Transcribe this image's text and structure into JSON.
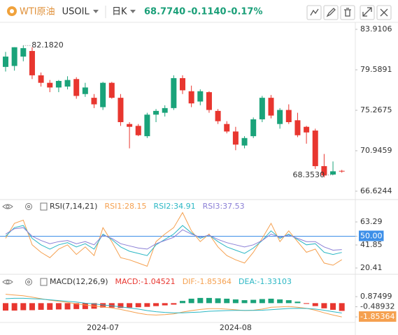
{
  "chart_data": [
    {
      "type": "candlestick",
      "title": "WTI原油",
      "symbol": "USOIL",
      "period": "日K",
      "quote": [
        "68.7740",
        "-0.1140",
        "-0.17%"
      ],
      "up_color": "#1aa37a",
      "down_color": "#e8362f",
      "categories": [
        null,
        null,
        null,
        null,
        null,
        null,
        null,
        null,
        null,
        null,
        null,
        "2024-07",
        null,
        null,
        null,
        null,
        null,
        null,
        null,
        null,
        null,
        null,
        null,
        null,
        null,
        null,
        "2024-08",
        null,
        null,
        null,
        null,
        null,
        null,
        null,
        null,
        null,
        null,
        null,
        null
      ],
      "open": [
        79.9,
        80.0,
        81.0,
        81.6,
        79.0,
        78.2,
        77.7,
        77.8,
        78.6,
        77.0,
        76.6,
        75.6,
        78.2,
        76.6,
        73.8,
        73.6,
        72.5,
        74.8,
        75.0,
        75.5,
        78.7,
        77.3,
        76.2,
        77.2,
        75.2,
        73.8,
        73.0,
        71.5,
        72.5,
        74.3,
        76.6,
        73.8,
        75.3,
        74.2,
        73.5,
        73.1,
        69.3,
        68.4,
        68.8
      ],
      "high": [
        81.5,
        82.0,
        82.182,
        82.0,
        79.3,
        78.5,
        78.5,
        78.9,
        78.8,
        78.2,
        77.0,
        78.3,
        78.3,
        77.0,
        74.0,
        73.8,
        75.0,
        75.4,
        75.8,
        79.0,
        79.0,
        77.9,
        77.5,
        77.3,
        75.4,
        74.1,
        73.5,
        72.5,
        74.5,
        76.8,
        76.9,
        75.5,
        75.9,
        75.0,
        73.6,
        73.3,
        70.6,
        69.8,
        68.9
      ],
      "low": [
        79.4,
        79.5,
        80.5,
        78.6,
        77.8,
        77.2,
        77.2,
        77.5,
        76.5,
        76.7,
        75.5,
        75.3,
        76.5,
        73.6,
        71.2,
        72.5,
        72.3,
        74.0,
        74.6,
        75.3,
        77.0,
        75.6,
        75.8,
        75.0,
        73.8,
        72.8,
        71.0,
        71.2,
        72.3,
        74.0,
        74.4,
        73.3,
        73.8,
        72.4,
        71.7,
        69.0,
        68.1,
        68.353,
        68.6
      ],
      "close": [
        81.0,
        82.0,
        81.9,
        79.0,
        78.2,
        77.7,
        78.4,
        78.5,
        76.8,
        77.7,
        75.9,
        78.2,
        76.6,
        74.0,
        73.5,
        72.6,
        74.8,
        75.2,
        75.5,
        78.7,
        77.4,
        76.0,
        77.3,
        75.3,
        74.1,
        73.0,
        71.6,
        72.3,
        74.3,
        76.6,
        74.7,
        75.3,
        74.0,
        72.6,
        72.9,
        69.3,
        68.3,
        68.75,
        68.774
      ],
      "annotations": [
        {
          "text": "82.1820",
          "value": 82.182
        },
        {
          "text": "68.3530",
          "value": 68.353
        }
      ],
      "ylim": [
        65.8,
        84.66
      ],
      "yticks": [
        83.9106,
        79.5891,
        75.2675,
        70.9459,
        66.6244
      ]
    },
    {
      "type": "line",
      "title": "RSI(7,14,21)",
      "hline": 50,
      "series": [
        {
          "name": "RSI1:28.15",
          "color": "#f5a04f",
          "values": [
            48,
            62,
            65,
            42,
            35,
            30,
            38,
            42,
            33,
            40,
            32,
            58,
            45,
            30,
            28,
            25,
            22,
            45,
            52,
            58,
            72,
            55,
            45,
            52,
            40,
            32,
            28,
            25,
            35,
            48,
            62,
            45,
            55,
            45,
            35,
            38,
            25,
            23,
            28.15
          ]
        },
        {
          "name": "RSI2:34.91",
          "color": "#2bb7c4",
          "values": [
            50,
            58,
            60,
            48,
            42,
            38,
            42,
            44,
            40,
            43,
            38,
            52,
            47,
            40,
            36,
            34,
            32,
            42,
            47,
            52,
            60,
            53,
            48,
            51,
            45,
            40,
            37,
            34,
            39,
            46,
            55,
            48,
            52,
            47,
            42,
            43,
            35,
            33,
            34.91
          ]
        },
        {
          "name": "RSI3:37.53",
          "color": "#8b7fd6",
          "values": [
            52,
            57,
            58,
            50,
            46,
            43,
            45,
            46,
            43,
            45,
            42,
            51,
            48,
            43,
            41,
            39,
            38,
            43,
            46,
            49,
            56,
            52,
            49,
            51,
            47,
            44,
            42,
            40,
            42,
            46,
            52,
            49,
            51,
            48,
            45,
            45,
            40,
            37,
            37.53
          ]
        }
      ],
      "ylim": [
        15.2,
        76.3
      ],
      "yticks": [
        63.29,
        {
          "value": 50,
          "label": "50.00"
        },
        41.85,
        20.41
      ]
    },
    {
      "type": "macd",
      "title": "MACD(12,26,9)",
      "series": [
        {
          "name": "MACD:-1.04521",
          "type": "bar",
          "color": "#e8362f",
          "up_color": "#1aa37a",
          "values": [
            -1.0,
            -1.0,
            -0.95,
            -0.95,
            -0.9,
            -0.9,
            -0.85,
            -0.85,
            -0.8,
            -0.8,
            -0.75,
            -0.6,
            -0.6,
            -0.65,
            -0.6,
            -0.55,
            -0.5,
            -0.4,
            -0.3,
            -0.2,
            0.3,
            0.6,
            0.7,
            0.7,
            0.65,
            0.6,
            0.5,
            0.4,
            0.45,
            0.55,
            0.6,
            0.5,
            0.4,
            0.2,
            -0.1,
            -0.4,
            -0.7,
            -0.9,
            -1.04521
          ]
        },
        {
          "name": "DIF:-1.85364",
          "type": "line",
          "color": "#f5a04f",
          "values": [
            1.2,
            1.1,
            1.0,
            0.8,
            0.6,
            0.4,
            0.25,
            0.1,
            -0.1,
            -0.25,
            -0.4,
            -0.5,
            -0.65,
            -0.85,
            -1.1,
            -1.35,
            -1.55,
            -1.6,
            -1.55,
            -1.45,
            -1.2,
            -1.0,
            -0.85,
            -0.75,
            -0.75,
            -0.8,
            -0.9,
            -1.0,
            -0.95,
            -0.8,
            -0.55,
            -0.5,
            -0.45,
            -0.55,
            -0.7,
            -0.95,
            -1.3,
            -1.6,
            -1.85364
          ]
        },
        {
          "name": "DEA:-1.33103",
          "type": "line",
          "color": "#2bb7c4",
          "values": [
            0.6,
            0.65,
            0.65,
            0.6,
            0.55,
            0.45,
            0.35,
            0.25,
            0.15,
            0.0,
            -0.1,
            -0.25,
            -0.35,
            -0.5,
            -0.65,
            -0.8,
            -1.0,
            -1.15,
            -1.25,
            -1.3,
            -1.3,
            -1.25,
            -1.2,
            -1.1,
            -1.05,
            -1.0,
            -0.98,
            -0.98,
            -0.98,
            -0.95,
            -0.88,
            -0.8,
            -0.72,
            -0.7,
            -0.72,
            -0.8,
            -0.95,
            -1.15,
            -1.33103
          ]
        }
      ],
      "ylim": [
        -2.6,
        2.76
      ],
      "yticks": [
        0.87499,
        -0.48932,
        -1.85364
      ]
    }
  ]
}
